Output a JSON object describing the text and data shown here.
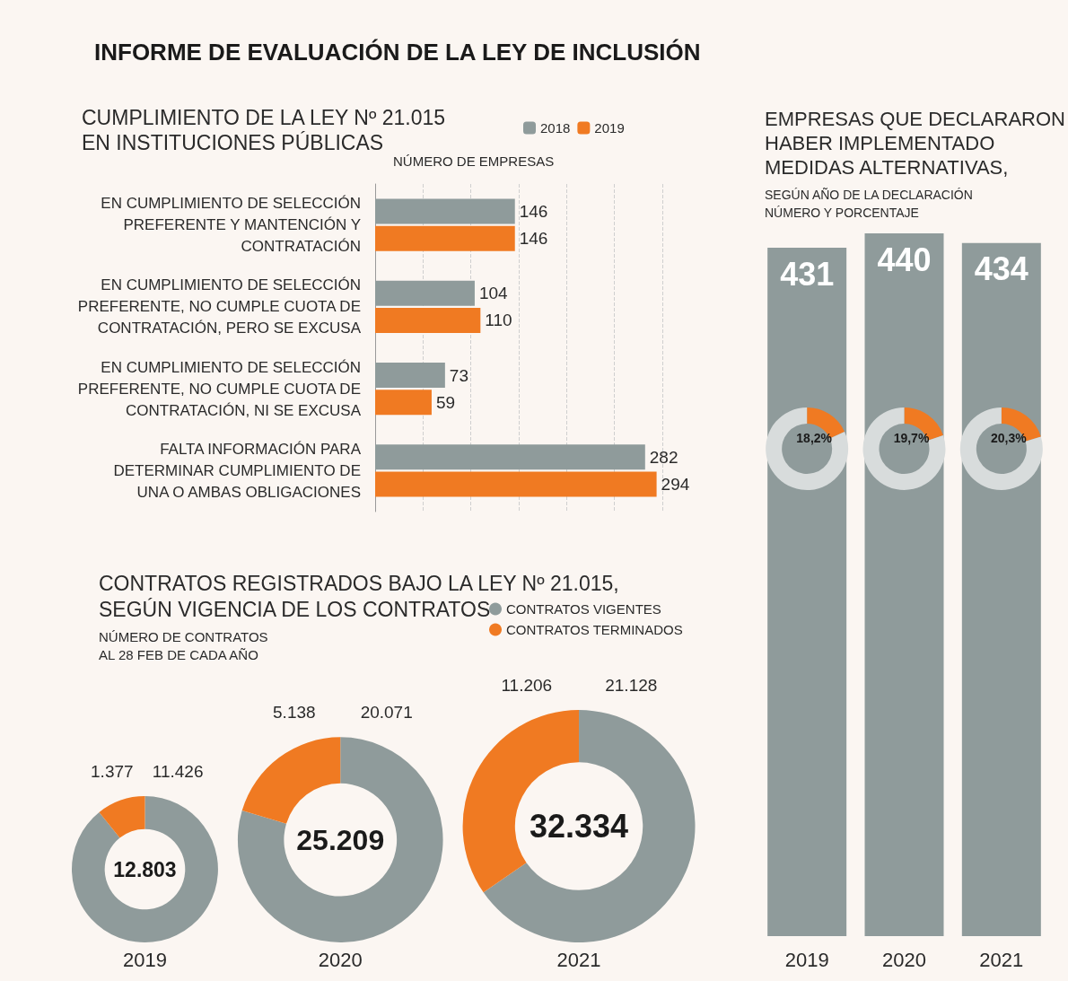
{
  "chart_data": [
    {
      "type": "bar",
      "orientation": "horizontal",
      "title": "INFORME DE EVALUACIÓN DE LA LEY DE INCLUSIÓN",
      "subtitle": "CUMPLIMIENTO DE LA LEY Nº 21.015\nEN INSTITUCIONES PÚBLICAS",
      "xlabel": "NÚMERO DE EMPRESAS",
      "categories": [
        "EN CUMPLIMIENTO DE SELECCIÓN\nPREFERENTE Y MANTENCIÓN Y\nCONTRATACIÓN",
        "EN CUMPLIMIENTO DE SELECCIÓN\nPREFERENTE, NO CUMPLE CUOTA DE\nCONTRATACIÓN, PERO SE EXCUSA",
        "EN CUMPLIMIENTO DE SELECCIÓN\nPREFERENTE, NO CUMPLE CUOTA DE\nCONTRATACIÓN, NI SE EXCUSA",
        "FALTA INFORMACIÓN PARA\nDETERMINAR CUMPLIMIENTO DE\nUNA O AMBAS OBLIGACIONES"
      ],
      "series": [
        {
          "name": "2018",
          "color": "#8f9b9b",
          "values": [
            146,
            104,
            73,
            282
          ]
        },
        {
          "name": "2019",
          "color": "#f07a22",
          "values": [
            146,
            110,
            59,
            294
          ]
        }
      ],
      "xlim": [
        0,
        300
      ],
      "xticks": [
        {
          "value": 0,
          "label": null
        },
        {
          "value": 50,
          "label": null
        },
        {
          "value": 100,
          "label": null
        },
        {
          "value": 150,
          "label": null
        },
        {
          "value": 200,
          "label": null
        },
        {
          "value": 250,
          "label": null
        },
        {
          "value": 300,
          "label": null
        }
      ],
      "tick_labels": "y",
      "grid": "x",
      "legend": "top right",
      "data_labels": true
    },
    {
      "type": "donut",
      "title": "CONTRATOS REGISTRADOS BAJO LA LEY Nº 21.015,\nSEGÚN VIGENCIA DE LOS CONTRATOS",
      "subtitle": "NÚMERO DE CONTRATOS\nAL 28 FEB DE CADA AÑO",
      "categories": [
        "CONTRATOS VIGENTES",
        "CONTRATOS TERMINADOS"
      ],
      "colors": [
        "#8f9b9b",
        "#f07a22"
      ],
      "series": [
        {
          "name": "2019",
          "values": [
            11426,
            1377
          ],
          "value_labels": [
            "11.426",
            "1.377"
          ]
        },
        {
          "name": "2020",
          "values": [
            20071,
            5138
          ],
          "value_labels": [
            "20.071",
            "5.138"
          ]
        },
        {
          "name": "2021",
          "values": [
            21128,
            11206
          ],
          "value_labels": [
            "21.128",
            "11.206"
          ]
        }
      ],
      "annotations": [
        "12.803",
        "25.209",
        "32.334"
      ],
      "legend": "top right"
    },
    {
      "type": "bar",
      "title": "EMPRESAS QUE DECLARARON\nHABER IMPLEMENTADO\nMEDIDAS ALTERNATIVAS,",
      "subtitle": "SEGÚN AÑO DE LA DECLARACIÓN\nNÚMERO Y PORCENTAJE",
      "categories": [
        "2019",
        "2020",
        "2021"
      ],
      "series": [
        {
          "color": "#8f9b9b",
          "values": [
            431,
            440,
            434
          ]
        }
      ],
      "data_labels": true
    },
    {
      "type": "donut",
      "categories": [
        null,
        null
      ],
      "colors": [
        "#f07a22",
        "#d8dcdc"
      ],
      "series": [
        {
          "values": [
            18.2,
            81.8
          ],
          "value_labels": [
            "18,2%",
            null
          ]
        },
        {
          "values": [
            19.7,
            80.3
          ],
          "value_labels": [
            "19,7%",
            null
          ]
        },
        {
          "values": [
            20.3,
            79.7
          ],
          "value_labels": [
            "20,3%",
            null
          ]
        }
      ]
    }
  ]
}
